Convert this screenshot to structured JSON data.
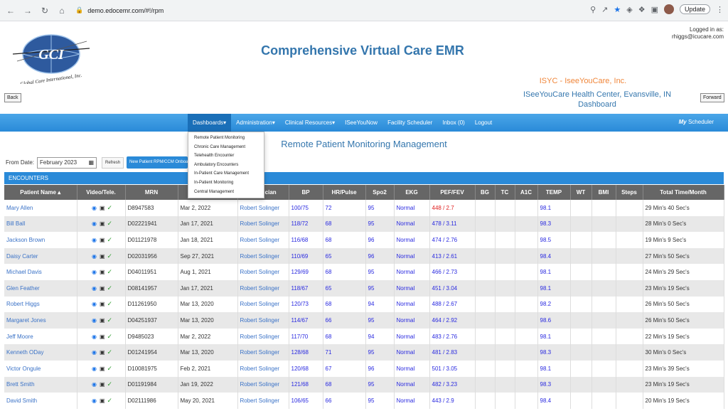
{
  "browser": {
    "url": "demo.edocemr.com/#!/rpm",
    "update_label": "Update"
  },
  "header": {
    "logo_text": "GCI",
    "logo_subtext": "Global Care International, Inc.",
    "title": "Comprehensive Virtual Care EMR",
    "logged_in_label": "Logged in as:",
    "logged_in_user": "rhiggs@icucare.com",
    "org_name": "ISYC - IseeYouCare, Inc.",
    "center_name": "ISeeYouCare Health Center, Evansville, IN",
    "dashboard_label": "Dashboard",
    "back_label": "Back",
    "forward_label": "Forward"
  },
  "navbar": {
    "items": [
      "Dashboards▾",
      "Administration▾",
      "Clinical Resources▾",
      "ISeeYouNow",
      "Facility Scheduler",
      "Inbox (0)",
      "Logout"
    ],
    "my_label": "My",
    "scheduler_label": "Scheduler"
  },
  "dropdown": {
    "items": [
      "Remote Patient Monitoring",
      "Chronic Care Management",
      "Telehealth Encounter",
      "Ambulatory Encounters",
      "In-Patient Care Management",
      "In-Patient Monitoring",
      "Central Management"
    ]
  },
  "page": {
    "title": "Remote Patient Monitoring Management",
    "from_date_label": "From Date:",
    "from_date_value": "February 2023",
    "refresh_label": "Refresh",
    "new_patient_label": "New Patient RPM/CCM Onboarding",
    "encounters_label": "ENCOUNTERS"
  },
  "table": {
    "headers": [
      "Patient Name ▴",
      "Video/Tele.",
      "MRN",
      "",
      "Physician",
      "BP",
      "HR/Pulse",
      "Spo2",
      "EKG",
      "PEF/FEV",
      "BG",
      "TC",
      "A1C",
      "TEMP",
      "WT",
      "BMI",
      "Steps",
      "Total Time/Month"
    ],
    "rows": [
      {
        "name": "Mary Allen",
        "mrn": "D8947583",
        "date": "Mar 2, 2022",
        "physician": "Robert Solinger",
        "bp": "100/75",
        "hr": "72",
        "spo2": "95",
        "ekg": "Normal",
        "pef": "448 / 2.7",
        "pef_alert": true,
        "temp": "98.1",
        "time": "29 Min's 40 Sec's"
      },
      {
        "name": "Bill Ball",
        "mrn": "D02221941",
        "date": "Jan 17, 2021",
        "physician": "Robert Solinger",
        "bp": "118/72",
        "hr": "68",
        "spo2": "95",
        "ekg": "Normal",
        "pef": "478 / 3.11",
        "pef_alert": false,
        "temp": "98.3",
        "time": "28 Min's 0 Sec's"
      },
      {
        "name": "Jackson Brown",
        "mrn": "D01121978",
        "date": "Jan 18, 2021",
        "physician": "Robert Solinger",
        "bp": "116/68",
        "hr": "68",
        "spo2": "96",
        "ekg": "Normal",
        "pef": "474 / 2.76",
        "pef_alert": false,
        "temp": "98.5",
        "time": "19 Min's 9 Sec's"
      },
      {
        "name": "Daisy Carter",
        "mrn": "D02031956",
        "date": "Sep 27, 2021",
        "physician": "Robert Solinger",
        "bp": "110/69",
        "hr": "65",
        "spo2": "96",
        "ekg": "Normal",
        "pef": "413 / 2.61",
        "pef_alert": false,
        "temp": "98.4",
        "time": "27 Min's 50 Sec's"
      },
      {
        "name": "Michael Davis",
        "mrn": "D04011951",
        "date": "Aug 1, 2021",
        "physician": "Robert Solinger",
        "bp": "129/69",
        "hr": "68",
        "spo2": "95",
        "ekg": "Normal",
        "pef": "466 / 2.73",
        "pef_alert": false,
        "temp": "98.1",
        "time": "24 Min's 29 Sec's"
      },
      {
        "name": "Glen Feather",
        "mrn": "D08141957",
        "date": "Jan 17, 2021",
        "physician": "Robert Solinger",
        "bp": "118/67",
        "hr": "65",
        "spo2": "95",
        "ekg": "Normal",
        "pef": "451 / 3.04",
        "pef_alert": false,
        "temp": "98.1",
        "time": "23 Min's 19 Sec's"
      },
      {
        "name": "Robert Higgs",
        "mrn": "D11261950",
        "date": "Mar 13, 2020",
        "physician": "Robert Solinger",
        "bp": "120/73",
        "hr": "68",
        "spo2": "94",
        "ekg": "Normal",
        "pef": "488 / 2.67",
        "pef_alert": false,
        "temp": "98.2",
        "time": "26 Min's 50 Sec's"
      },
      {
        "name": "Margaret Jones",
        "mrn": "D04251937",
        "date": "Mar 13, 2020",
        "physician": "Robert Solinger",
        "bp": "114/67",
        "hr": "66",
        "spo2": "95",
        "ekg": "Normal",
        "pef": "464 / 2.92",
        "pef_alert": false,
        "temp": "98.6",
        "time": "26 Min's 50 Sec's"
      },
      {
        "name": "Jeff Moore",
        "mrn": "D9485023",
        "date": "Mar 2, 2022",
        "physician": "Robert Solinger",
        "bp": "117/70",
        "hr": "68",
        "spo2": "94",
        "ekg": "Normal",
        "pef": "483 / 2.76",
        "pef_alert": false,
        "temp": "98.1",
        "time": "22 Min's 19 Sec's"
      },
      {
        "name": "Kenneth ODay",
        "mrn": "D01241954",
        "date": "Mar 13, 2020",
        "physician": "Robert Solinger",
        "bp": "128/68",
        "hr": "71",
        "spo2": "95",
        "ekg": "Normal",
        "pef": "481 / 2.83",
        "pef_alert": false,
        "temp": "98.3",
        "time": "30 Min's 0 Sec's"
      },
      {
        "name": "Victor Ongule",
        "mrn": "D10081975",
        "date": "Feb 2, 2021",
        "physician": "Robert Solinger",
        "bp": "120/68",
        "hr": "67",
        "spo2": "96",
        "ekg": "Normal",
        "pef": "501 / 3.05",
        "pef_alert": false,
        "temp": "98.1",
        "time": "23 Min's 39 Sec's"
      },
      {
        "name": "Brett Smith",
        "mrn": "D01191984",
        "date": "Jan 19, 2022",
        "physician": "Robert Solinger",
        "bp": "121/68",
        "hr": "68",
        "spo2": "95",
        "ekg": "Normal",
        "pef": "482 / 3.23",
        "pef_alert": false,
        "temp": "98.3",
        "time": "23 Min's 19 Sec's"
      },
      {
        "name": "David Smith",
        "mrn": "D02111986",
        "date": "May 20, 2021",
        "physician": "Robert Solinger",
        "bp": "106/65",
        "hr": "66",
        "spo2": "95",
        "ekg": "Normal",
        "pef": "443 / 2.9",
        "pef_alert": false,
        "temp": "98.4",
        "time": "20 Min's 19 Sec's"
      }
    ]
  }
}
